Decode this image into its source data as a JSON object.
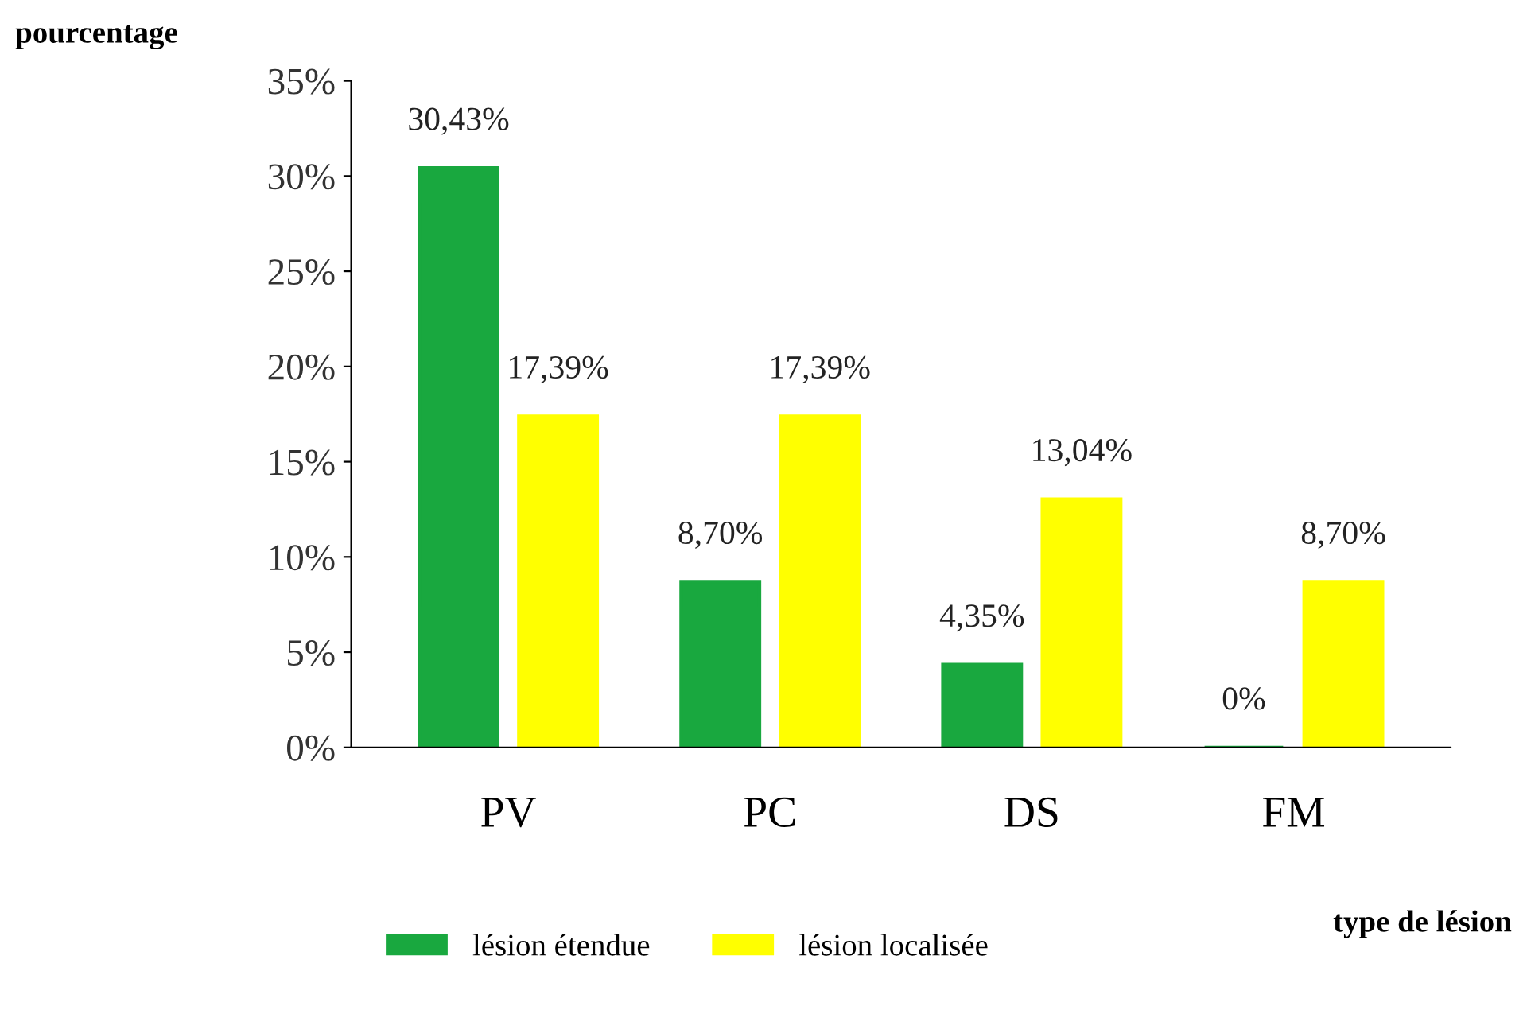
{
  "chart_data": {
    "type": "bar",
    "xlabel": "type de lésion",
    "ylabel": "pourcentage",
    "categories": [
      "PV",
      "PC",
      "DS",
      "FM"
    ],
    "series": [
      {
        "name": "lésion étendue",
        "color": "#19a83f",
        "values": [
          30.43,
          8.7,
          4.35,
          0
        ],
        "value_labels": [
          "30,43%",
          "8,70%",
          "4,35%",
          "0%"
        ]
      },
      {
        "name": "lésion localisée",
        "color": "#ffff00",
        "values": [
          17.39,
          17.39,
          13.04,
          8.7
        ],
        "value_labels": [
          "17,39%",
          "17,39%",
          "13,04%",
          "8,70%"
        ]
      }
    ],
    "ylim": [
      0,
      35
    ],
    "yticks": [
      {
        "value": 0,
        "label": "0%"
      },
      {
        "value": 5,
        "label": "5%"
      },
      {
        "value": 10,
        "label": "10%"
      },
      {
        "value": 15,
        "label": "15%"
      },
      {
        "value": 20,
        "label": "20%"
      },
      {
        "value": 25,
        "label": "25%"
      },
      {
        "value": 30,
        "label": "30%"
      },
      {
        "value": 35,
        "label": "35%"
      }
    ],
    "grid": false,
    "legend": "bottom"
  }
}
